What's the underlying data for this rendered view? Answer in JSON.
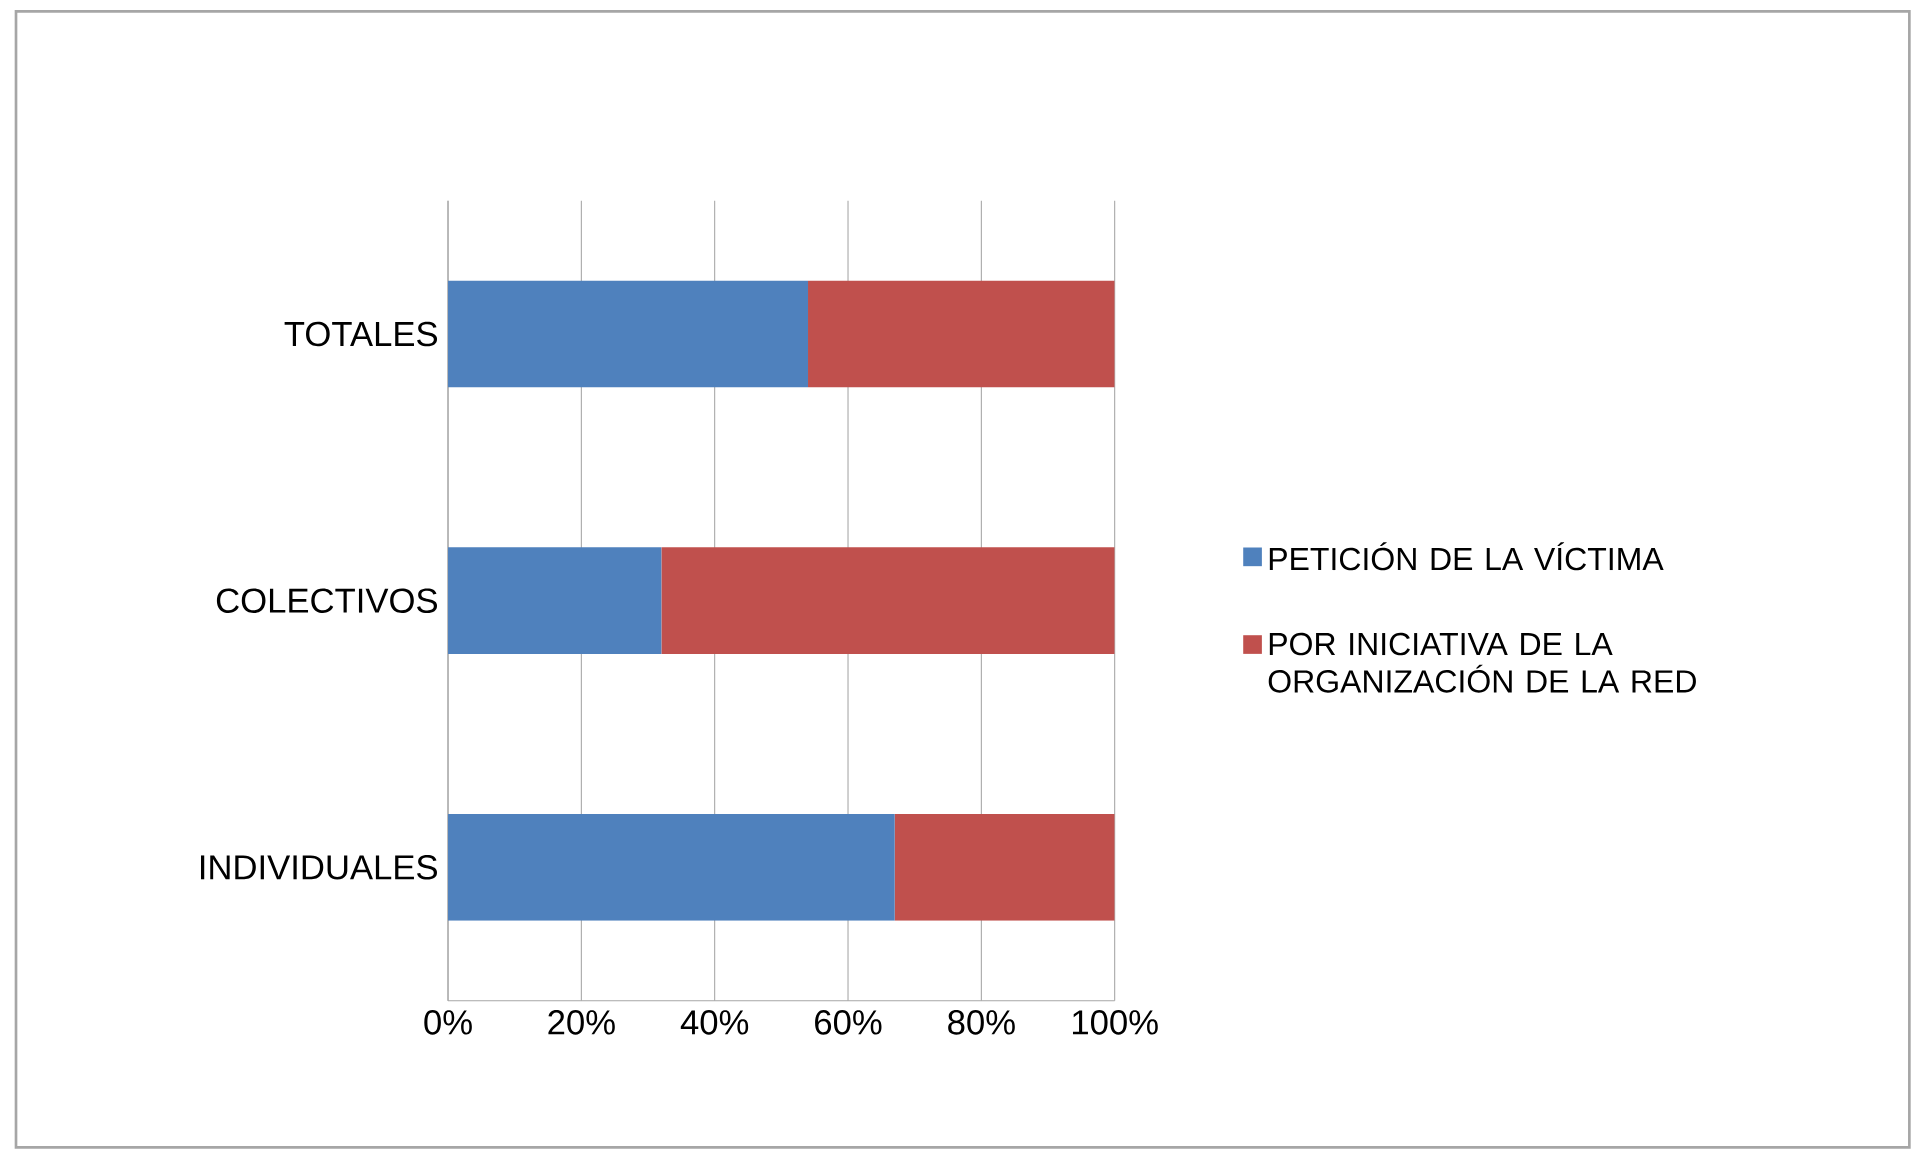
{
  "chart_data": {
    "type": "bar",
    "orientation": "horizontal",
    "stacked": true,
    "categories": [
      "TOTALES",
      "COLECTIVOS",
      "INDIVIDUALES"
    ],
    "series": [
      {
        "name": "PETICIÓN DE LA VÍCTIMA",
        "color": "#4f81bd",
        "values": [
          54,
          32,
          67
        ]
      },
      {
        "name": "POR INICIATIVA DE LA ORGANIZACIÓN DE LA RED",
        "color": "#c0504d",
        "values": [
          46,
          68,
          33
        ]
      }
    ],
    "xlim": [
      0,
      100
    ],
    "xticks": [
      {
        "value": 0,
        "label": "0%"
      },
      {
        "value": 20,
        "label": "20%"
      },
      {
        "value": 40,
        "label": "40%"
      },
      {
        "value": 60,
        "label": "60%"
      },
      {
        "value": 80,
        "label": "80%"
      },
      {
        "value": 100,
        "label": "100%"
      }
    ],
    "grid": "x",
    "legend": "right"
  }
}
